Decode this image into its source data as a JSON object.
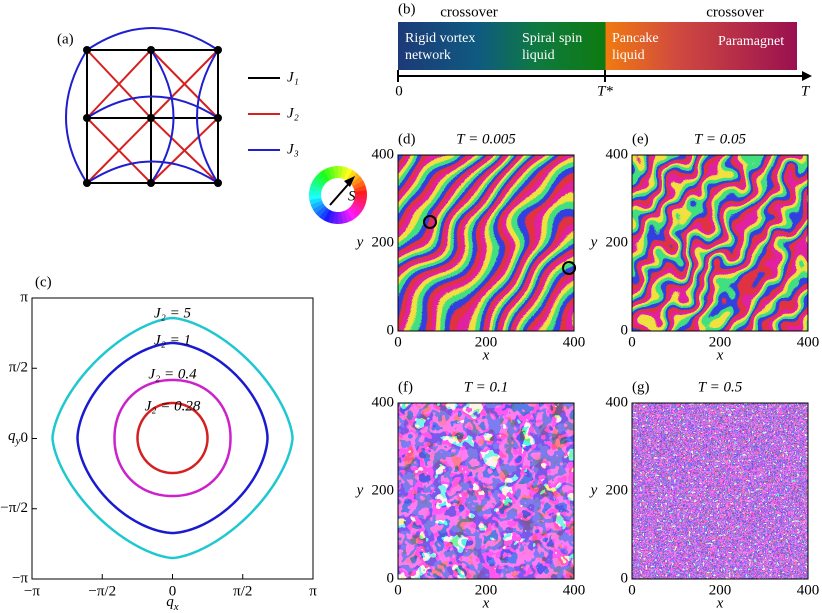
{
  "panel_a": {
    "label": "(a)",
    "legend": [
      {
        "name": "J₁",
        "color": "#000000"
      },
      {
        "name": "J₂",
        "color": "#d62020"
      },
      {
        "name": "J₃",
        "color": "#1f1fd0"
      }
    ]
  },
  "panel_b": {
    "label": "(b)",
    "crossover": [
      "crossover",
      "crossover"
    ],
    "phases": [
      [
        "Rigid vortex",
        "network"
      ],
      [
        "Spiral spin",
        "liquid"
      ],
      [
        "Pancake",
        "liquid"
      ],
      [
        "Paramagnet"
      ]
    ],
    "axis_ticks": [
      "0",
      "T*",
      "T"
    ]
  },
  "color_wheel": {
    "label": "S"
  },
  "panel_c": {
    "label": "(c)",
    "curves": [
      {
        "name": "J₂ = 5",
        "color": "#1fc8d0"
      },
      {
        "name": "J₂ = 1",
        "color": "#1a1ad0"
      },
      {
        "name": "J₂ = 0.4",
        "color": "#cc22cc"
      },
      {
        "name": "J₂ = 0.28",
        "color": "#d42020"
      }
    ],
    "xticks": [
      "−π",
      "−π/2",
      "0",
      "π/2",
      "π"
    ],
    "yticks": [
      "−π",
      "−π/2",
      "0",
      "π/2",
      "π"
    ],
    "xlabel": {
      "base": "q",
      "sub": "x"
    },
    "ylabel": {
      "base": "q",
      "sub": "y"
    }
  },
  "snapshots": [
    {
      "label": "(d)",
      "title": "T = 0.005",
      "xticks": [
        0,
        200,
        400
      ],
      "yticks": [
        0,
        200,
        400
      ],
      "xlabel": "x",
      "ylabel": "y"
    },
    {
      "label": "(e)",
      "title": "T = 0.05",
      "xticks": [
        0,
        200,
        400
      ],
      "yticks": [
        0,
        200,
        400
      ],
      "xlabel": "x",
      "ylabel": "y"
    },
    {
      "label": "(f)",
      "title": "T = 0.1",
      "xticks": [
        0,
        200,
        400
      ],
      "yticks": [
        0,
        200,
        400
      ],
      "xlabel": "x",
      "ylabel": "y"
    },
    {
      "label": "(g)",
      "title": "T = 0.5",
      "xticks": [
        0,
        200,
        400
      ],
      "yticks": [
        0,
        200,
        400
      ],
      "xlabel": "x",
      "ylabel": "y"
    }
  ]
}
